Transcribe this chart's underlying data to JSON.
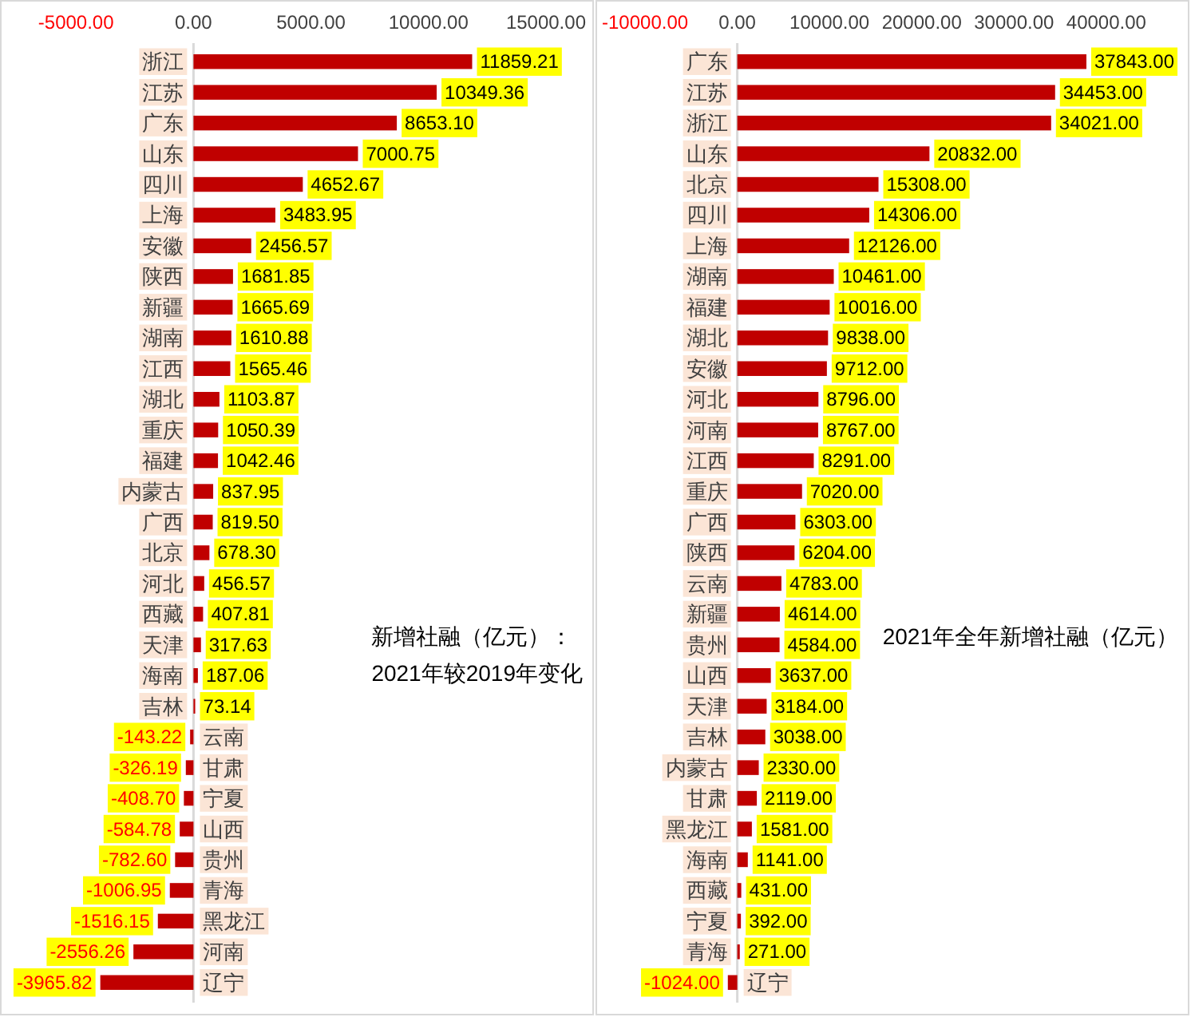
{
  "chart_data": [
    {
      "type": "bar",
      "orientation": "horizontal",
      "title": "新增社融（亿元）：",
      "subtitle": "2021年较2019年变化",
      "categories": [
        "浙江",
        "江苏",
        "广东",
        "山东",
        "四川",
        "上海",
        "安徽",
        "陕西",
        "新疆",
        "湖南",
        "江西",
        "湖北",
        "重庆",
        "福建",
        "内蒙古",
        "广西",
        "北京",
        "河北",
        "西藏",
        "天津",
        "海南",
        "吉林",
        "云南",
        "甘肃",
        "宁夏",
        "山西",
        "贵州",
        "青海",
        "黑龙江",
        "河南",
        "辽宁"
      ],
      "values": [
        11859.21,
        10349.36,
        8653.1,
        7000.75,
        4652.67,
        3483.95,
        2456.57,
        1681.85,
        1665.69,
        1610.88,
        1565.46,
        1103.87,
        1050.39,
        1042.46,
        837.95,
        819.5,
        678.3,
        456.57,
        407.81,
        317.63,
        187.06,
        73.14,
        -143.22,
        -326.19,
        -408.7,
        -584.78,
        -782.6,
        -1006.95,
        -1516.15,
        -2556.26,
        -3965.82
      ],
      "value_labels": [
        "11859.21",
        "10349.36",
        "8653.10",
        "7000.75",
        "4652.67",
        "3483.95",
        "2456.57",
        "1681.85",
        "1665.69",
        "1610.88",
        "1565.46",
        "1103.87",
        "1050.39",
        "1042.46",
        "837.95",
        "819.50",
        "678.30",
        "456.57",
        "407.81",
        "317.63",
        "187.06",
        "73.14",
        "-143.22",
        "-326.19",
        "-408.70",
        "-584.78",
        "-782.60",
        "-1006.95",
        "-1516.15",
        "-2556.26",
        "-3965.82"
      ],
      "color": "#c00000",
      "xlim": [
        -5000,
        15000
      ],
      "xticks": [
        {
          "value": -5000,
          "label": "-5000.00"
        },
        {
          "value": 0,
          "label": "0.00"
        },
        {
          "value": 5000,
          "label": "5000.00"
        },
        {
          "value": 10000,
          "label": "10000.00"
        },
        {
          "value": 15000,
          "label": "15000.00"
        }
      ]
    },
    {
      "type": "bar",
      "orientation": "horizontal",
      "title": "2021年全年新增社融（亿元）",
      "categories": [
        "广东",
        "江苏",
        "浙江",
        "山东",
        "北京",
        "四川",
        "上海",
        "湖南",
        "福建",
        "湖北",
        "安徽",
        "河北",
        "河南",
        "江西",
        "重庆",
        "广西",
        "陕西",
        "云南",
        "新疆",
        "贵州",
        "山西",
        "天津",
        "吉林",
        "内蒙古",
        "甘肃",
        "黑龙江",
        "海南",
        "西藏",
        "宁夏",
        "青海",
        "辽宁"
      ],
      "values": [
        37843,
        34453,
        34021,
        20832,
        15308,
        14306,
        12126,
        10461,
        10016,
        9838,
        9712,
        8796,
        8767,
        8291,
        7020,
        6303,
        6204,
        4783,
        4614,
        4584,
        3637,
        3184,
        3038,
        2330,
        2119,
        1581,
        1141,
        431,
        392,
        271,
        -1024
      ],
      "value_labels": [
        "37843.00",
        "34453.00",
        "34021.00",
        "20832.00",
        "15308.00",
        "14306.00",
        "12126.00",
        "10461.00",
        "10016.00",
        "9838.00",
        "9712.00",
        "8796.00",
        "8767.00",
        "8291.00",
        "7020.00",
        "6303.00",
        "6204.00",
        "4783.00",
        "4614.00",
        "4584.00",
        "3637.00",
        "3184.00",
        "3038.00",
        "2330.00",
        "2119.00",
        "1581.00",
        "1141.00",
        "431.00",
        "392.00",
        "271.00",
        "-1024.00"
      ],
      "color": "#c00000",
      "xlim": [
        -10000,
        40000
      ],
      "xticks": [
        {
          "value": -10000,
          "label": "-10000.00"
        },
        {
          "value": 0,
          "label": "0.00"
        },
        {
          "value": 10000,
          "label": "10000.00"
        },
        {
          "value": 20000,
          "label": "20000.00"
        },
        {
          "value": 30000,
          "label": "30000.00"
        },
        {
          "value": 40000,
          "label": "40000.00"
        }
      ]
    }
  ]
}
